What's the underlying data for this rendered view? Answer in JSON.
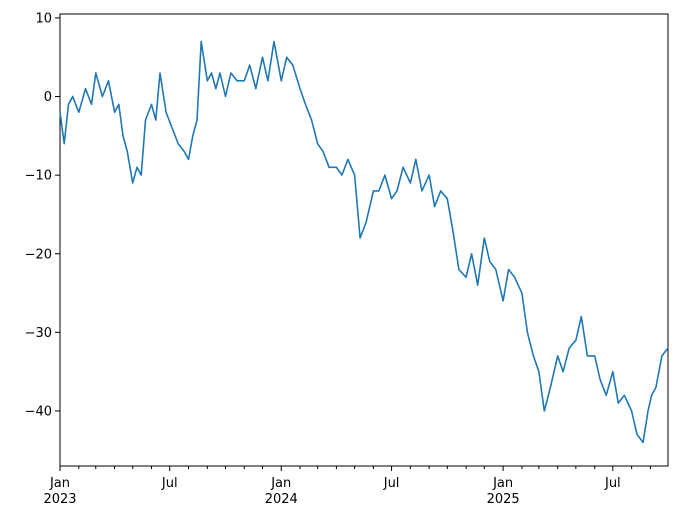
{
  "chart_data": {
    "type": "line",
    "title": "",
    "xlabel": "",
    "ylabel": "",
    "grid": false,
    "legend": "none",
    "xlim": [
      "2023-01-01",
      "2025-09-30"
    ],
    "ylim": [
      -47,
      10.5
    ],
    "y_ticks": [
      10,
      0,
      -10,
      -20,
      -30,
      -40
    ],
    "y_tick_labels": [
      "10",
      "0",
      "−10",
      "−20",
      "−30",
      "−40"
    ],
    "x_ticks": [
      {
        "date": "2023-01-01",
        "label": "Jan",
        "sublabel": "2023"
      },
      {
        "date": "2023-07-01",
        "label": "Jul",
        "sublabel": ""
      },
      {
        "date": "2024-01-01",
        "label": "Jan",
        "sublabel": "2024"
      },
      {
        "date": "2024-07-01",
        "label": "Jul",
        "sublabel": ""
      },
      {
        "date": "2025-01-01",
        "label": "Jan",
        "sublabel": "2025"
      },
      {
        "date": "2025-07-01",
        "label": "Jul",
        "sublabel": ""
      }
    ],
    "minor_tick_dates": [
      "2023-02-01",
      "2023-03-01",
      "2023-04-01",
      "2023-05-01",
      "2023-06-01",
      "2023-08-01",
      "2023-09-01",
      "2023-10-01",
      "2023-11-01",
      "2023-12-01",
      "2024-02-01",
      "2024-03-01",
      "2024-04-01",
      "2024-05-01",
      "2024-06-01",
      "2024-08-01",
      "2024-09-01",
      "2024-10-01",
      "2024-11-01",
      "2024-12-01",
      "2025-02-01",
      "2025-03-01",
      "2025-04-01",
      "2025-05-01",
      "2025-06-01",
      "2025-08-01",
      "2025-09-01"
    ],
    "series": [
      {
        "color": "#1f77b4",
        "x": [
          "2023-01-01",
          "2023-01-08",
          "2023-01-15",
          "2023-01-22",
          "2023-02-01",
          "2023-02-12",
          "2023-02-22",
          "2023-03-01",
          "2023-03-12",
          "2023-03-22",
          "2023-04-01",
          "2023-04-08",
          "2023-04-15",
          "2023-04-22",
          "2023-05-01",
          "2023-05-08",
          "2023-05-15",
          "2023-05-22",
          "2023-06-01",
          "2023-06-08",
          "2023-06-15",
          "2023-06-25",
          "2023-07-05",
          "2023-07-15",
          "2023-07-25",
          "2023-08-01",
          "2023-08-08",
          "2023-08-15",
          "2023-08-22",
          "2023-09-01",
          "2023-09-08",
          "2023-09-15",
          "2023-09-22",
          "2023-10-01",
          "2023-10-10",
          "2023-10-20",
          "2023-11-01",
          "2023-11-10",
          "2023-11-20",
          "2023-12-01",
          "2023-12-10",
          "2023-12-20",
          "2024-01-01",
          "2024-01-10",
          "2024-01-20",
          "2024-02-01",
          "2024-02-10",
          "2024-02-20",
          "2024-03-01",
          "2024-03-10",
          "2024-03-20",
          "2024-04-01",
          "2024-04-10",
          "2024-04-20",
          "2024-05-01",
          "2024-05-10",
          "2024-05-20",
          "2024-06-01",
          "2024-06-10",
          "2024-06-20",
          "2024-07-01",
          "2024-07-10",
          "2024-07-20",
          "2024-08-01",
          "2024-08-10",
          "2024-08-20",
          "2024-09-01",
          "2024-09-10",
          "2024-09-20",
          "2024-10-01",
          "2024-10-10",
          "2024-10-20",
          "2024-11-01",
          "2024-11-10",
          "2024-11-20",
          "2024-12-01",
          "2024-12-10",
          "2024-12-20",
          "2025-01-01",
          "2025-01-10",
          "2025-01-20",
          "2025-02-01",
          "2025-02-10",
          "2025-02-20",
          "2025-03-01",
          "2025-03-10",
          "2025-03-20",
          "2025-04-01",
          "2025-04-10",
          "2025-04-20",
          "2025-05-01",
          "2025-05-10",
          "2025-05-20",
          "2025-06-01",
          "2025-06-10",
          "2025-06-20",
          "2025-07-01",
          "2025-07-10",
          "2025-07-20",
          "2025-08-01",
          "2025-08-10",
          "2025-08-20",
          "2025-08-28",
          "2025-09-03",
          "2025-09-10",
          "2025-09-20",
          "2025-09-30"
        ],
        "values": [
          -2,
          -6,
          -1,
          0,
          -2,
          1,
          -1,
          3,
          0,
          2,
          -2,
          -1,
          -5,
          -7,
          -11,
          -9,
          -10,
          -3,
          -1,
          -3,
          3,
          -2,
          -4,
          -6,
          -7,
          -8,
          -5,
          -3,
          7,
          2,
          3,
          1,
          3,
          0,
          3,
          2,
          2,
          4,
          1,
          5,
          2,
          7,
          2,
          5,
          4,
          1,
          -1,
          -3,
          -6,
          -7,
          -9,
          -9,
          -10,
          -8,
          -10,
          -18,
          -16,
          -12,
          -12,
          -10,
          -13,
          -12,
          -9,
          -11,
          -8,
          -12,
          -10,
          -14,
          -12,
          -13,
          -17,
          -22,
          -23,
          -20,
          -24,
          -18,
          -21,
          -22,
          -26,
          -22,
          -23,
          -25,
          -30,
          -33,
          -35,
          -40,
          -37,
          -33,
          -35,
          -32,
          -31,
          -28,
          -33,
          -33,
          -36,
          -38,
          -35,
          -39,
          -38,
          -40,
          -43,
          -44,
          -40,
          -38,
          -37,
          -33,
          -32
        ]
      }
    ]
  }
}
